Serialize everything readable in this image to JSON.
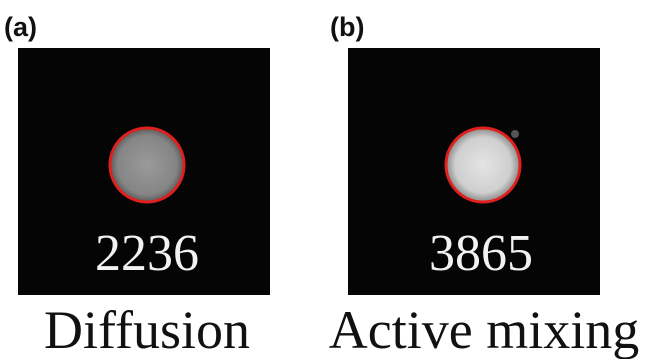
{
  "panels": [
    {
      "label": "(a)",
      "value": "2236",
      "caption": "Diffusion"
    },
    {
      "label": "(b)",
      "value": "3865",
      "caption": "Active mixing"
    }
  ]
}
